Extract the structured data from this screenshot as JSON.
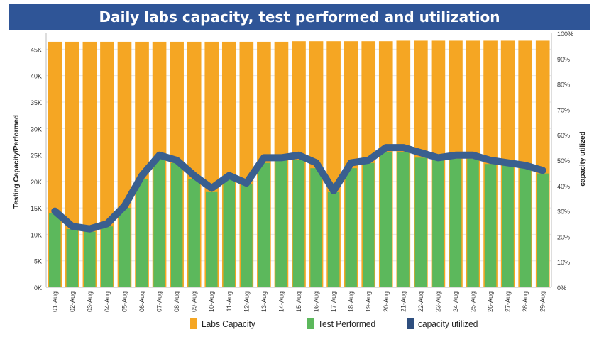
{
  "chart_data": {
    "type": "bar",
    "title": "Daily labs capacity, test performed and utilization",
    "ylabel": "Testing Capacity/Performed",
    "y2label": "capacity utilized",
    "ylim": [
      0,
      48000
    ],
    "y2lim": [
      0,
      1
    ],
    "y_ticks": [
      "0K",
      "5K",
      "10K",
      "15K",
      "20K",
      "25K",
      "30K",
      "35K",
      "40K",
      "45K"
    ],
    "y2_ticks": [
      "0%",
      "10%",
      "20%",
      "30%",
      "40%",
      "50%",
      "60%",
      "70%",
      "80%",
      "90%",
      "100%"
    ],
    "legend_position": "bottom",
    "categories": [
      "01-Aug",
      "02-Aug",
      "03-Aug",
      "04-Aug",
      "05-Aug",
      "06-Aug",
      "07-Aug",
      "08-Aug",
      "09-Aug",
      "10-Aug",
      "11-Aug",
      "12-Aug",
      "13-Aug",
      "14-Aug",
      "15-Aug",
      "16-Aug",
      "17-Aug",
      "18-Aug",
      "19-Aug",
      "20-Aug",
      "21-Aug",
      "22-Aug",
      "23-Aug",
      "24-Aug",
      "25-Aug",
      "26-Aug",
      "27-Aug",
      "28-Aug",
      "29-Aug"
    ],
    "series": [
      {
        "name": "Labs Capacity",
        "type": "bar",
        "color": "#f5a623",
        "values": [
          46400,
          46400,
          46400,
          46400,
          46400,
          46400,
          46400,
          46400,
          46400,
          46400,
          46400,
          46400,
          46400,
          46400,
          46500,
          46500,
          46500,
          46500,
          46500,
          46500,
          46600,
          46600,
          46600,
          46600,
          46600,
          46600,
          46600,
          46600,
          46600
        ]
      },
      {
        "name": "Test Performed",
        "type": "bar",
        "color": "#5cb85c",
        "values": [
          14000,
          11000,
          10500,
          11500,
          15000,
          20500,
          24500,
          23500,
          20500,
          18000,
          20500,
          19500,
          23500,
          24000,
          24000,
          22500,
          18000,
          22500,
          23500,
          25500,
          25500,
          24500,
          24000,
          24300,
          24300,
          23300,
          23000,
          22500,
          21500
        ]
      },
      {
        "name": "capacity utilized",
        "type": "line",
        "color": "#3a5f8f",
        "values": [
          0.3,
          0.24,
          0.23,
          0.25,
          0.32,
          0.44,
          0.52,
          0.5,
          0.44,
          0.39,
          0.44,
          0.41,
          0.51,
          0.51,
          0.52,
          0.49,
          0.38,
          0.49,
          0.5,
          0.55,
          0.55,
          0.53,
          0.51,
          0.52,
          0.52,
          0.5,
          0.49,
          0.48,
          0.46
        ]
      }
    ]
  }
}
